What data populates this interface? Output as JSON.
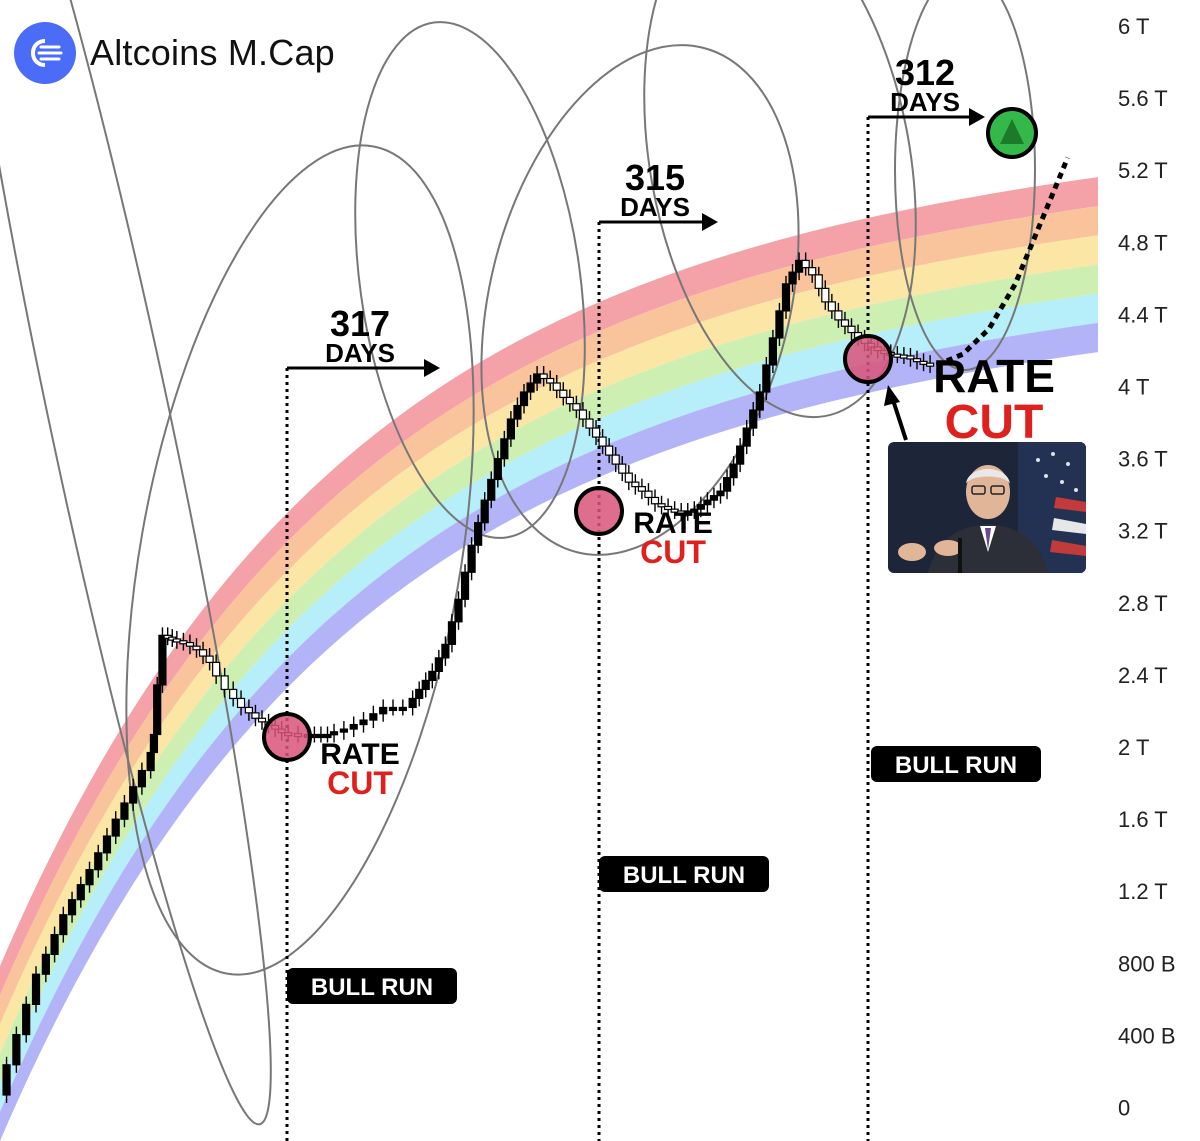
{
  "brand": {
    "name": "Altcoins M.Cap",
    "logo_icon": "speed-lines-circle-icon",
    "logo_color": "#4a6cf7"
  },
  "chart_data": {
    "type": "candlestick",
    "title": "",
    "xlabel": "",
    "ylabel": "",
    "ylim": [
      0,
      6000000000000
    ],
    "y_ticks": [
      "6 T",
      "5.6 T",
      "5.2 T",
      "4.8 T",
      "4.4 T",
      "4 T",
      "3.6 T",
      "3.2 T",
      "2.8 T",
      "2.4 T",
      "2 T",
      "1.6 T",
      "1.2 T",
      "800 B",
      "400 B",
      "0"
    ],
    "rainbow_band_colors": [
      "#f4a2a8",
      "#f9c49c",
      "#fbe6a6",
      "#cdf0b2",
      "#b6eefa",
      "#b3b4f8"
    ],
    "annotations": [
      {
        "number": "317",
        "unit": "DAYS"
      },
      {
        "number": "315",
        "unit": "DAYS"
      },
      {
        "number": "312",
        "unit": "DAYS"
      }
    ],
    "rate_cuts": [
      {
        "line1": "RATE",
        "line2": "CUT"
      },
      {
        "line1": "RATE",
        "line2": "CUT"
      },
      {
        "line1": "RATE",
        "line2": "CUT"
      }
    ],
    "bull_runs": [
      "BULL RUN",
      "BULL RUN",
      "BULL RUN"
    ],
    "colors": {
      "rate_cut_red": "#e0201c",
      "target_green": "#35b84a",
      "circle_fill": "#d9537a"
    },
    "price_path": [
      [
        0.05,
        0.05
      ],
      [
        0.35,
        0.72
      ],
      [
        0.55,
        1.05
      ],
      [
        0.75,
        1.3
      ],
      [
        0.95,
        1.58
      ],
      [
        1.15,
        1.85
      ],
      [
        1.2,
        2.05
      ],
      [
        1.28,
        2.6
      ],
      [
        1.35,
        2.58
      ],
      [
        1.45,
        2.56
      ],
      [
        1.55,
        2.52
      ],
      [
        1.65,
        2.45
      ],
      [
        1.78,
        2.3
      ],
      [
        1.9,
        2.2
      ],
      [
        2.0,
        2.14
      ],
      [
        2.1,
        2.1
      ],
      [
        2.2,
        2.06
      ],
      [
        2.35,
        2.05
      ],
      [
        2.45,
        2.05
      ],
      [
        2.55,
        2.05
      ],
      [
        2.7,
        2.08
      ],
      [
        2.85,
        2.13
      ],
      [
        3.0,
        2.2
      ],
      [
        3.15,
        2.2
      ],
      [
        3.25,
        2.3
      ],
      [
        3.35,
        2.4
      ],
      [
        3.45,
        2.55
      ],
      [
        3.55,
        2.8
      ],
      [
        3.65,
        3.1
      ],
      [
        3.75,
        3.35
      ],
      [
        3.85,
        3.58
      ],
      [
        3.95,
        3.8
      ],
      [
        4.05,
        3.95
      ],
      [
        4.15,
        4.05
      ],
      [
        4.25,
        4.0
      ],
      [
        4.35,
        3.92
      ],
      [
        4.45,
        3.85
      ],
      [
        4.55,
        3.75
      ],
      [
        4.65,
        3.65
      ],
      [
        4.75,
        3.55
      ],
      [
        4.85,
        3.45
      ],
      [
        4.95,
        3.4
      ],
      [
        5.05,
        3.33
      ],
      [
        5.15,
        3.3
      ],
      [
        5.25,
        3.28
      ],
      [
        5.35,
        3.3
      ],
      [
        5.45,
        3.35
      ],
      [
        5.55,
        3.4
      ],
      [
        5.65,
        3.55
      ],
      [
        5.75,
        3.75
      ],
      [
        5.85,
        3.95
      ],
      [
        5.95,
        4.25
      ],
      [
        6.05,
        4.55
      ],
      [
        6.15,
        4.68
      ],
      [
        6.25,
        4.6
      ],
      [
        6.35,
        4.45
      ],
      [
        6.45,
        4.35
      ],
      [
        6.55,
        4.28
      ],
      [
        6.65,
        4.22
      ],
      [
        6.75,
        4.18
      ],
      [
        6.85,
        4.16
      ],
      [
        6.95,
        4.15
      ],
      [
        7.05,
        4.12
      ],
      [
        7.15,
        4.1
      ]
    ],
    "projection": [
      [
        7.15,
        4.1
      ],
      [
        7.35,
        4.16
      ],
      [
        7.55,
        4.3
      ],
      [
        7.75,
        4.55
      ],
      [
        7.95,
        4.9
      ],
      [
        8.15,
        5.25
      ]
    ],
    "target_marker": "triangle-up-icon"
  }
}
